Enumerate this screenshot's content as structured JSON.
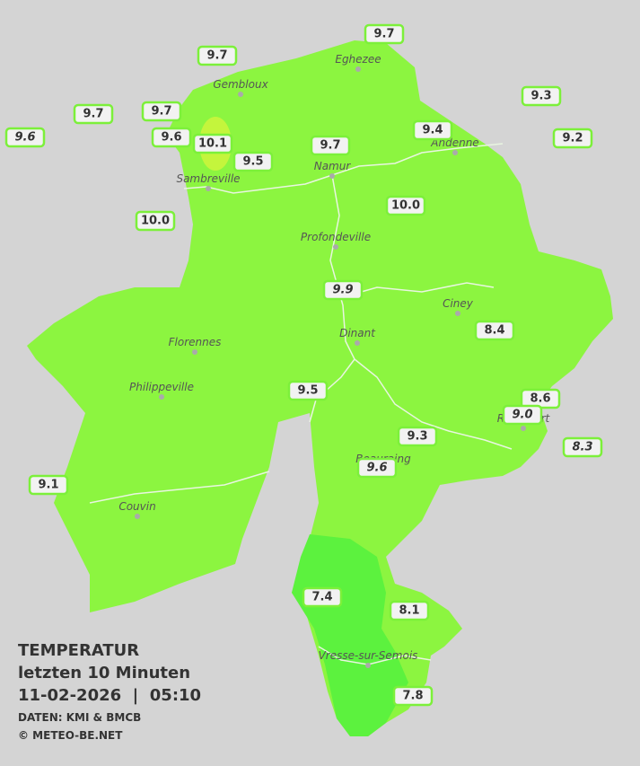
{
  "legend": {
    "title": "TEMPERATUR",
    "period": "letzten 10 Minuten",
    "datetime": "11-02-2026  |  05:10",
    "source": "DATEN: KMI & BMCB",
    "copyright": "© METEO-BE.NET"
  },
  "towns": [
    "Eghezee",
    "Gembloux",
    "Andenne",
    "Namur",
    "Sambreville",
    "Profondeville",
    "Ciney",
    "Dinant",
    "Florennes",
    "Philippeville",
    "Rochefort",
    "Beauraing",
    "Couvin",
    "Vresse-sur-Semois"
  ],
  "stations": [
    "9.7",
    "9.7",
    "9.3",
    "9.7",
    "9.7",
    "9.6",
    "9.6",
    "10.1",
    "9.4",
    "9.2",
    "9.7",
    "9.5",
    "10.0",
    "10.0",
    "9.9",
    "8.4",
    "9.5",
    "8.6",
    "9.0",
    "9.3",
    "8.3",
    "9.6",
    "9.1",
    "7.4",
    "8.1",
    "7.8"
  ]
}
